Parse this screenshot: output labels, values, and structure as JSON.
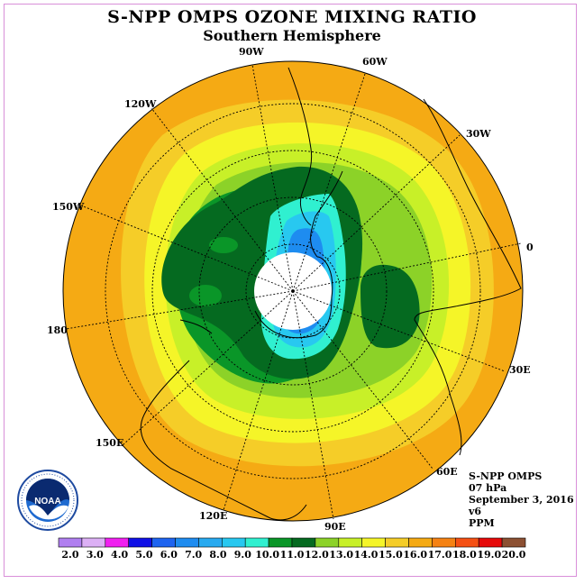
{
  "title": "S-NPP OMPS OZONE MIXING RATIO",
  "subtitle": "Southern Hemisphere",
  "longitude_labels": {
    "w90": "90W",
    "w60": "60W",
    "w30": "30W",
    "e0": "0",
    "e30": "30E",
    "e60": "60E",
    "e90": "90E",
    "e120": "120E",
    "e150": "150E",
    "lon180": "180",
    "w150": "150W",
    "w120": "120W"
  },
  "info": {
    "instrument": "S-NPP OMPS",
    "level": "07 hPa",
    "date": "September 3, 2016",
    "version": "v6",
    "units": "PPM"
  },
  "logo": {
    "text": "NOAA",
    "icon": "noaa-logo"
  },
  "colorbar": {
    "ticks": [
      "2.0",
      "3.0",
      "4.0",
      "5.0",
      "6.0",
      "7.0",
      "8.0",
      "9.0",
      "10.0",
      "11.0",
      "12.0",
      "13.0",
      "14.0",
      "15.0",
      "16.0",
      "17.0",
      "18.0",
      "19.0",
      "20.0"
    ],
    "colors": [
      "#b07ff0",
      "#dcb0f5",
      "#f020f0",
      "#1010e6",
      "#1e64f0",
      "#1e8cf0",
      "#28aaf0",
      "#28c8f0",
      "#30f0d0",
      "#0a9628",
      "#056a20",
      "#8cd228",
      "#c8f028",
      "#f5f528",
      "#f5cd28",
      "#f5aa14",
      "#f58214",
      "#f55014",
      "#e60a0a",
      "#8c5032"
    ]
  },
  "colors": {
    "ring_outer": "#f5aa14",
    "ring_2": "#f5cd28",
    "ring_3": "#f5f528",
    "ring_4": "#c8f028",
    "ring_5": "#8cd228",
    "ring_6": "#0a9628",
    "core": "#056a20",
    "cyan": "#30f0d0",
    "blue": "#28c8f0",
    "deep_blue": "#1e8cf0",
    "polar_hole": "#ffffff"
  }
}
